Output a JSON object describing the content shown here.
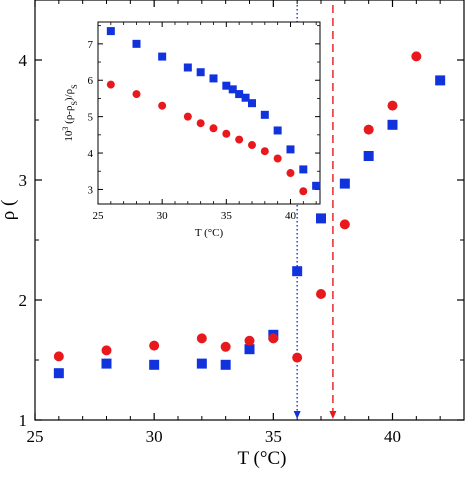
{
  "colors": {
    "series_a": "#1133dd",
    "series_b": "#e8191c",
    "axis": "#000000"
  },
  "chart_data": [
    {
      "type": "scatter",
      "title": "",
      "xlabel": "T (°C)",
      "ylabel": "ρ (",
      "xlim": [
        25,
        43
      ],
      "ylim": [
        1,
        4.5
      ],
      "xticks": [
        "25",
        "30",
        "35",
        "40"
      ],
      "yticks": [
        "1",
        "2",
        "3",
        "4"
      ],
      "series": [
        {
          "marker": "square",
          "color": "#1133dd",
          "points": [
            [
              26,
              1.39
            ],
            [
              28,
              1.47
            ],
            [
              30,
              1.46
            ],
            [
              32,
              1.47
            ],
            [
              33,
              1.46
            ],
            [
              34,
              1.59
            ],
            [
              35,
              1.71
            ],
            [
              36,
              2.24
            ],
            [
              37,
              2.68
            ],
            [
              38,
              2.97
            ],
            [
              39,
              3.2
            ],
            [
              40,
              3.46
            ],
            [
              42,
              3.83
            ]
          ]
        },
        {
          "marker": "circle",
          "color": "#e8191c",
          "points": [
            [
              26,
              1.53
            ],
            [
              28,
              1.58
            ],
            [
              30,
              1.62
            ],
            [
              32,
              1.68
            ],
            [
              33,
              1.61
            ],
            [
              34,
              1.66
            ],
            [
              35,
              1.68
            ],
            [
              36,
              1.52
            ],
            [
              37,
              2.05
            ],
            [
              38,
              2.63
            ],
            [
              39,
              3.42
            ],
            [
              40,
              3.62
            ],
            [
              41,
              4.03
            ]
          ]
        }
      ],
      "vlines": [
        {
          "x": 36,
          "style": "dotted",
          "color": "#1133dd",
          "arrow": true
        },
        {
          "x": 37.5,
          "style": "dashed",
          "color": "#e8191c",
          "arrow": true
        }
      ]
    },
    {
      "type": "scatter",
      "title": "",
      "xlabel": "T (°C)",
      "ylabel_parts": {
        "a": "10",
        "b": "3",
        "c": " (ρ-ρ",
        "d": "S",
        "e": ")/ρ",
        "f": "S"
      },
      "xlim": [
        25,
        42.3
      ],
      "ylim": [
        2.6,
        7.6
      ],
      "xticks": [
        "25",
        "30",
        "35",
        "40"
      ],
      "yticks": [
        "3",
        "4",
        "5",
        "6",
        "7"
      ],
      "series": [
        {
          "marker": "square",
          "color": "#1133dd",
          "points": [
            [
              26,
              7.35
            ],
            [
              28,
              7.0
            ],
            [
              30,
              6.65
            ],
            [
              32,
              6.35
            ],
            [
              33,
              6.22
            ],
            [
              34,
              6.05
            ],
            [
              35,
              5.85
            ],
            [
              35.5,
              5.75
            ],
            [
              36,
              5.62
            ],
            [
              36.5,
              5.52
            ],
            [
              37,
              5.37
            ],
            [
              38,
              5.05
            ],
            [
              39,
              4.62
            ],
            [
              40,
              4.1
            ],
            [
              41,
              3.55
            ],
            [
              42,
              3.1
            ]
          ]
        },
        {
          "marker": "circle",
          "color": "#e8191c",
          "points": [
            [
              26,
              5.88
            ],
            [
              28,
              5.62
            ],
            [
              30,
              5.3
            ],
            [
              32,
              5.0
            ],
            [
              33,
              4.82
            ],
            [
              34,
              4.68
            ],
            [
              35,
              4.53
            ],
            [
              36,
              4.37
            ],
            [
              37,
              4.22
            ],
            [
              38,
              4.05
            ],
            [
              39,
              3.85
            ],
            [
              40,
              3.45
            ],
            [
              41,
              2.95
            ]
          ]
        }
      ]
    }
  ]
}
